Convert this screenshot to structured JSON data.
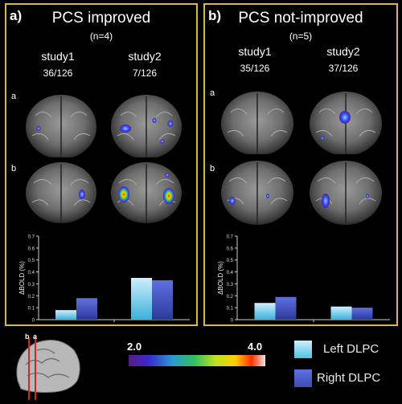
{
  "panels": [
    {
      "letter": "a)",
      "title": "PCS improved",
      "n": "(n=4)",
      "studies": [
        {
          "name": "study1",
          "count": "36/126"
        },
        {
          "name": "study2",
          "count": "7/126"
        }
      ],
      "row_labels": [
        "a",
        "b"
      ]
    },
    {
      "letter": "b)",
      "title": "PCS not-improved",
      "n": "(n=5)",
      "studies": [
        {
          "name": "study1",
          "count": "35/126"
        },
        {
          "name": "study2",
          "count": "37/126"
        }
      ],
      "row_labels": [
        "a",
        "b"
      ]
    }
  ],
  "legend": {
    "left_label": "Left DLPC",
    "right_label": "Right DLPC",
    "left_color": "#4fc3e0",
    "right_color": "#3a4fb0"
  },
  "colorscale": {
    "min": "2.0",
    "max": "4.0"
  },
  "slice_labels": {
    "b": "b",
    "a": "a"
  },
  "chart_data": [
    {
      "type": "bar",
      "categories": [
        "study1",
        "study2"
      ],
      "series": [
        {
          "name": "Left DLPC",
          "values": [
            0.08,
            0.35
          ]
        },
        {
          "name": "Right DLPC",
          "values": [
            0.18,
            0.33
          ]
        }
      ],
      "ylabel": "ΔBOLD (%)",
      "ylim": [
        0,
        0.7
      ],
      "yticks": [
        "0",
        "0.1",
        "0.2",
        "0.3",
        "0.4",
        "0.5",
        "0.6",
        "0.7"
      ]
    },
    {
      "type": "bar",
      "categories": [
        "study1",
        "study2"
      ],
      "series": [
        {
          "name": "Left DLPC",
          "values": [
            0.14,
            0.11
          ]
        },
        {
          "name": "Right DLPC",
          "values": [
            0.19,
            0.1
          ]
        }
      ],
      "ylabel": "ΔBOLD (%)",
      "ylim": [
        0,
        0.7
      ],
      "yticks": [
        "0",
        "0.1",
        "0.2",
        "0.3",
        "0.4",
        "0.5",
        "0.6",
        "0.7"
      ]
    }
  ]
}
